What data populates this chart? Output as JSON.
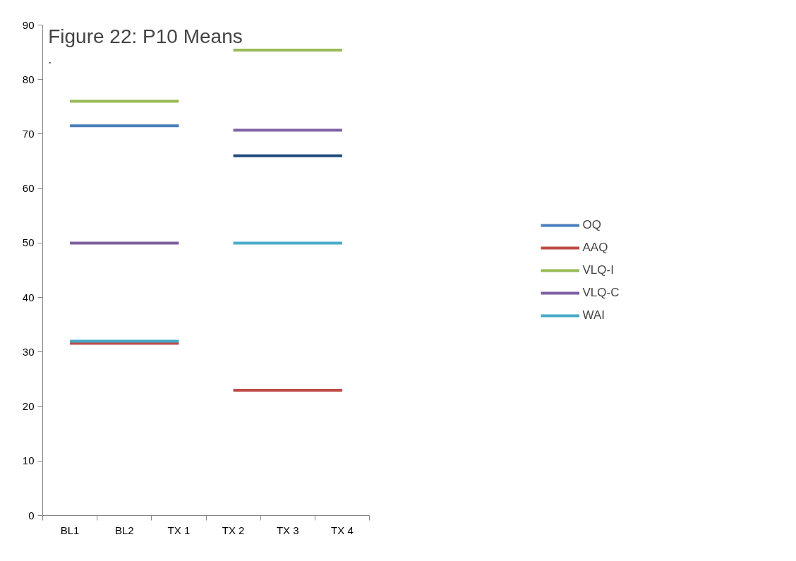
{
  "chart_data": {
    "type": "line",
    "title": "Figure 22: P10 Means",
    "annotations": [
      "."
    ],
    "categories": [
      "BL1",
      "BL2",
      "TX 1",
      "TX 2",
      "TX 3",
      "TX 4"
    ],
    "series": [
      {
        "name": "OQ",
        "color": "#4a7ebb",
        "values": [
          71.5,
          71.5,
          71.5,
          null,
          null,
          null
        ]
      },
      {
        "name": "AAQ",
        "color": "#be4b48",
        "values": [
          31.6,
          31.6,
          31.6,
          null,
          null,
          null
        ]
      },
      {
        "name": "VLQ-I",
        "color": "#98b954",
        "values": [
          76,
          76,
          76,
          null,
          null,
          null
        ]
      },
      {
        "name": "VLQ-C",
        "color": "#7d5fa0",
        "values": [
          50,
          50,
          50,
          null,
          null,
          null
        ]
      },
      {
        "name": "WAI",
        "color": "#46aac5",
        "values": [
          32,
          32,
          32,
          null,
          null,
          null
        ]
      },
      {
        "color": "#be4b48",
        "values": [
          null,
          null,
          null,
          23,
          23,
          23
        ]
      },
      {
        "color": "#98b954",
        "values": [
          null,
          null,
          null,
          85.4,
          85.4,
          85.4
        ]
      },
      {
        "color": "#8064a2",
        "values": [
          null,
          null,
          null,
          70.7,
          70.7,
          70.7
        ]
      },
      {
        "color": "#4bacc6",
        "values": [
          null,
          null,
          null,
          50,
          50,
          50
        ]
      },
      {
        "color": "#1f497d",
        "values": [
          null,
          null,
          null,
          66,
          66,
          66
        ]
      }
    ],
    "ylim": [
      0,
      90
    ],
    "yticks": [
      0,
      10,
      20,
      30,
      40,
      50,
      60,
      70,
      80,
      90
    ],
    "grid": false,
    "legend": "right",
    "marker": "none",
    "line_style": "solid"
  }
}
